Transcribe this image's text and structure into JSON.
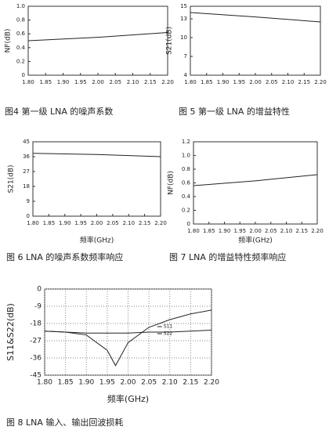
{
  "chart_data": [
    {
      "type": "line",
      "caption": "图4 第一级 LNA 的噪声系数",
      "ylabel": "NF(dB)",
      "x": [
        1.8,
        2.0,
        2.2
      ],
      "series": [
        {
          "name": "NF",
          "color": "#222222",
          "values": [
            0.5,
            0.55,
            0.62
          ]
        }
      ],
      "xlim": [
        1.8,
        2.2
      ],
      "xticks": [
        {
          "value": 1.8,
          "label": "1.80"
        },
        1.85,
        {
          "value": 1.9,
          "label": "1.90"
        },
        1.95,
        {
          "value": 2.0,
          "label": "2.00"
        },
        2.05,
        {
          "value": 2.1,
          "label": "2.10"
        },
        2.15,
        {
          "value": 2.2,
          "label": "2.20"
        }
      ],
      "ylim": [
        0,
        1
      ],
      "yticks": [
        0,
        0.2,
        0.4,
        0.6,
        0.8,
        {
          "value": 1,
          "label": "1.0"
        }
      ],
      "grid": false
    },
    {
      "type": "line",
      "caption": "图 5 第一级 LNA 的增益特性",
      "ylabel": "S21(dB)",
      "x": [
        1.8,
        2.0,
        2.2
      ],
      "series": [
        {
          "name": "S21",
          "color": "#222222",
          "values": [
            14,
            13.3,
            12.5
          ]
        }
      ],
      "xlim": [
        1.8,
        2.2
      ],
      "xticks": [
        {
          "value": 1.8,
          "label": "1.80"
        },
        1.85,
        {
          "value": 1.9,
          "label": "1.90"
        },
        1.95,
        {
          "value": 2.0,
          "label": "2.00"
        },
        2.05,
        {
          "value": 2.1,
          "label": "2.10"
        },
        2.15,
        {
          "value": 2.2,
          "label": "2.20"
        }
      ],
      "ylim": [
        4,
        15
      ],
      "yticks": [
        4,
        7,
        10,
        13,
        15
      ],
      "grid": false
    },
    {
      "type": "line",
      "caption": "图 6 LNA 的噪声系数频率响应",
      "ylabel": "S21(dB)",
      "xlabel": "频率(GHz)",
      "x": [
        1.8,
        2.0,
        2.2
      ],
      "series": [
        {
          "name": "S21",
          "color": "#222222",
          "values": [
            38,
            37.3,
            36
          ]
        }
      ],
      "xlim": [
        1.8,
        2.2
      ],
      "xticks": [
        {
          "value": 1.8,
          "label": "1.80"
        },
        1.85,
        {
          "value": 1.9,
          "label": "1.90"
        },
        1.95,
        {
          "value": 2.0,
          "label": "2.00"
        },
        2.05,
        {
          "value": 2.1,
          "label": "2.10"
        },
        2.15,
        {
          "value": 2.2,
          "label": "2.20"
        }
      ],
      "ylim": [
        0,
        45
      ],
      "yticks": [
        0,
        9,
        18,
        27,
        36,
        45
      ],
      "grid": false
    },
    {
      "type": "line",
      "caption": "图 7 LNA 的增益特性频率响应",
      "ylabel": "NF(dB)",
      "xlabel": "频率(GHz)",
      "x": [
        1.8,
        2.0,
        2.2
      ],
      "series": [
        {
          "name": "NF",
          "color": "#222222",
          "values": [
            0.56,
            0.63,
            0.72
          ]
        }
      ],
      "xlim": [
        1.8,
        2.2
      ],
      "xticks": [
        {
          "value": 1.8,
          "label": "1.80"
        },
        1.85,
        {
          "value": 1.9,
          "label": "1.90"
        },
        1.95,
        {
          "value": 2.0,
          "label": "2.00"
        },
        2.05,
        {
          "value": 2.1,
          "label": "2.10"
        },
        2.15,
        {
          "value": 2.2,
          "label": "2.20"
        }
      ],
      "ylim": [
        0,
        1.2
      ],
      "yticks": [
        0,
        0.2,
        0.4,
        0.6,
        0.8,
        {
          "value": 1,
          "label": "1.0"
        },
        1.2
      ],
      "grid": false
    },
    {
      "type": "line",
      "caption": "图 8 LNA 输入、输出回波损耗",
      "ylabel": "S11&S22(dB)",
      "xlabel": "频率(GHz)",
      "x": [
        1.8,
        1.85,
        1.9,
        1.95,
        1.97,
        2.0,
        2.05,
        2.1,
        2.15,
        2.2
      ],
      "series": [
        {
          "name": "S11",
          "color": "#222222",
          "values": [
            -22,
            -22.5,
            -24,
            -32,
            -40,
            -28,
            -20,
            -16,
            -13,
            -11
          ]
        },
        {
          "name": "S22",
          "color": "#222222",
          "values": [
            -22,
            -22.5,
            -23,
            -23,
            -23,
            -23,
            -22.5,
            -22.5,
            -22,
            -21.5
          ]
        }
      ],
      "xlim": [
        1.8,
        2.2
      ],
      "xticks": [
        {
          "value": 1.8,
          "label": "1.80"
        },
        1.85,
        {
          "value": 1.9,
          "label": "1.90"
        },
        1.95,
        {
          "value": 2.0,
          "label": "2.00"
        },
        2.05,
        {
          "value": 2.1,
          "label": "2.10"
        },
        2.15,
        {
          "value": 2.2,
          "label": "2.20"
        }
      ],
      "ylim": [
        -45,
        0
      ],
      "yticks": [
        -45,
        -36,
        -27,
        -18,
        -9,
        0
      ],
      "grid": true,
      "legend": "top-right"
    }
  ]
}
